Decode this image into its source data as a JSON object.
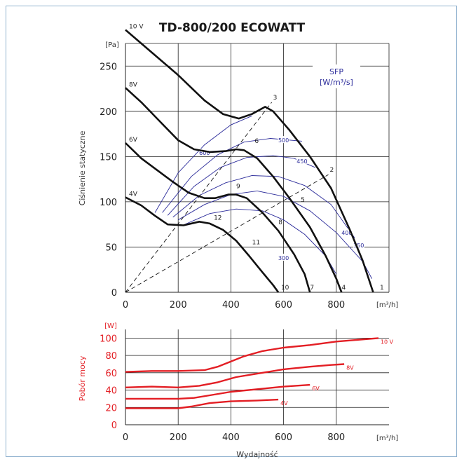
{
  "chart_data": [
    {
      "type": "line",
      "title": "TD-800/200 ECOWATT",
      "ylabel": "Ciśnienie statyczne",
      "y_unit": "[Pa]",
      "x_unit": "[m³/h]",
      "xlim": [
        0,
        1000
      ],
      "ylim": [
        0,
        275
      ],
      "x_ticks": [
        0,
        200,
        400,
        600,
        800
      ],
      "y_ticks": [
        0,
        50,
        100,
        150,
        200,
        250
      ],
      "grid": true,
      "series": [
        {
          "name": "10 V",
          "color": "#111111",
          "points": [
            [
              0,
              290
            ],
            [
              100,
              265
            ],
            [
              200,
              240
            ],
            [
              300,
              212
            ],
            [
              370,
              197
            ],
            [
              430,
              192
            ],
            [
              480,
              197
            ],
            [
              530,
              205
            ],
            [
              560,
              200
            ],
            [
              620,
              180
            ],
            [
              700,
              150
            ],
            [
              780,
              115
            ],
            [
              850,
              70
            ],
            [
              900,
              35
            ],
            [
              940,
              0
            ]
          ]
        },
        {
          "name": "8V",
          "color": "#111111",
          "points": [
            [
              0,
              226
            ],
            [
              60,
              210
            ],
            [
              120,
              192
            ],
            [
              200,
              168
            ],
            [
              260,
              158
            ],
            [
              320,
              155
            ],
            [
              380,
              156
            ],
            [
              420,
              158
            ],
            [
              450,
              157
            ],
            [
              500,
              148
            ],
            [
              560,
              128
            ],
            [
              620,
              105
            ],
            [
              700,
              72
            ],
            [
              760,
              40
            ],
            [
              800,
              15
            ],
            [
              820,
              0
            ]
          ]
        },
        {
          "name": "6V",
          "color": "#111111",
          "points": [
            [
              0,
              165
            ],
            [
              60,
              148
            ],
            [
              120,
              135
            ],
            [
              180,
              122
            ],
            [
              240,
              110
            ],
            [
              300,
              104
            ],
            [
              340,
              104
            ],
            [
              390,
              108
            ],
            [
              420,
              108
            ],
            [
              460,
              104
            ],
            [
              520,
              88
            ],
            [
              580,
              68
            ],
            [
              640,
              42
            ],
            [
              680,
              20
            ],
            [
              700,
              0
            ]
          ]
        },
        {
          "name": "4V",
          "color": "#111111",
          "points": [
            [
              0,
              105
            ],
            [
              60,
              96
            ],
            [
              110,
              85
            ],
            [
              160,
              75
            ],
            [
              220,
              74
            ],
            [
              280,
              78
            ],
            [
              320,
              76
            ],
            [
              370,
              69
            ],
            [
              420,
              57
            ],
            [
              470,
              40
            ],
            [
              520,
              22
            ],
            [
              560,
              8
            ],
            [
              580,
              0
            ]
          ]
        }
      ],
      "sfp_title": "SFP",
      "sfp_unit": "[W/m³/s]",
      "sfp_curves": [
        {
          "label": "600",
          "label_at": [
            300,
            154
          ],
          "points": [
            [
              112,
              88
            ],
            [
              200,
              132
            ],
            [
              300,
              163
            ],
            [
              400,
              185
            ],
            [
              480,
              195
            ]
          ]
        },
        {
          "label": "500",
          "label_at": [
            600,
            168
          ],
          "points": [
            [
              140,
              88
            ],
            [
              250,
              128
            ],
            [
              350,
              152
            ],
            [
              450,
              166
            ],
            [
              550,
              170
            ],
            [
              670,
              167
            ]
          ]
        },
        {
          "label": "450",
          "label_at": [
            670,
            145
          ],
          "points": [
            [
              160,
              85
            ],
            [
              260,
              117
            ],
            [
              360,
              138
            ],
            [
              460,
              149
            ],
            [
              560,
              151
            ],
            [
              640,
              148
            ],
            [
              720,
              138
            ]
          ]
        },
        {
          "label": "400",
          "label_at": [
            840,
            66
          ],
          "points": [
            [
              180,
              83
            ],
            [
              280,
              107
            ],
            [
              380,
              121
            ],
            [
              480,
              129
            ],
            [
              580,
              128
            ],
            [
              680,
              118
            ],
            [
              780,
              97
            ],
            [
              870,
              60
            ]
          ]
        },
        {
          "label": "350",
          "label_at": [
            885,
            52
          ],
          "points": [
            [
              200,
              80
            ],
            [
              300,
              97
            ],
            [
              400,
              108
            ],
            [
              500,
              112
            ],
            [
              600,
              106
            ],
            [
              700,
              90
            ],
            [
              800,
              66
            ],
            [
              900,
              34
            ],
            [
              935,
              15
            ]
          ]
        },
        {
          "label": "300",
          "label_at": [
            600,
            38
          ],
          "points": [
            [
              225,
              75
            ],
            [
              320,
              87
            ],
            [
              420,
              92
            ],
            [
              520,
              90
            ],
            [
              600,
              80
            ],
            [
              680,
              64
            ],
            [
              760,
              40
            ],
            [
              800,
              20
            ]
          ]
        }
      ],
      "operating_points": [
        {
          "label": "1",
          "x": 960,
          "y": 0
        },
        {
          "label": "2",
          "x": 770,
          "y": 130
        },
        {
          "label": "3",
          "x": 555,
          "y": 210
        },
        {
          "label": "4",
          "x": 815,
          "y": 0
        },
        {
          "label": "5",
          "x": 660,
          "y": 97
        },
        {
          "label": "6",
          "x": 485,
          "y": 162
        },
        {
          "label": "7",
          "x": 695,
          "y": 0
        },
        {
          "label": "8",
          "x": 575,
          "y": 72
        },
        {
          "label": "9",
          "x": 415,
          "y": 112
        },
        {
          "label": "10",
          "x": 585,
          "y": 0
        },
        {
          "label": "11",
          "x": 475,
          "y": 50
        },
        {
          "label": "12",
          "x": 330,
          "y": 77
        }
      ],
      "dashed_lines": [
        [
          [
            0,
            0
          ],
          [
            555,
            210
          ]
        ],
        [
          [
            0,
            0
          ],
          [
            770,
            130
          ]
        ]
      ]
    },
    {
      "type": "line",
      "ylabel": "Pobór mocy",
      "y_unit": "[W]",
      "x_unit": "[m³/h]",
      "xlabel": "Wydajność",
      "xlim": [
        0,
        1000
      ],
      "ylim": [
        0,
        110
      ],
      "x_ticks": [
        0,
        200,
        400,
        600,
        800
      ],
      "y_ticks": [
        0,
        20,
        40,
        60,
        80,
        100
      ],
      "grid": true,
      "series": [
        {
          "name": "10 V",
          "color": "#e31e24",
          "points": [
            [
              0,
              61
            ],
            [
              100,
              62
            ],
            [
              200,
              62
            ],
            [
              300,
              63
            ],
            [
              350,
              67
            ],
            [
              400,
              73
            ],
            [
              450,
              79
            ],
            [
              520,
              85
            ],
            [
              600,
              89
            ],
            [
              700,
              92
            ],
            [
              800,
              96
            ],
            [
              960,
              100
            ]
          ]
        },
        {
          "name": "8V",
          "color": "#e31e24",
          "points": [
            [
              0,
              43
            ],
            [
              100,
              44
            ],
            [
              200,
              43
            ],
            [
              280,
              45
            ],
            [
              350,
              49
            ],
            [
              420,
              55
            ],
            [
              500,
              59
            ],
            [
              600,
              64
            ],
            [
              700,
              67
            ],
            [
              780,
              69
            ],
            [
              830,
              70
            ]
          ]
        },
        {
          "name": "6V",
          "color": "#e31e24",
          "points": [
            [
              0,
              30
            ],
            [
              100,
              30
            ],
            [
              200,
              30
            ],
            [
              260,
              31
            ],
            [
              320,
              34
            ],
            [
              400,
              38
            ],
            [
              500,
              41
            ],
            [
              600,
              44
            ],
            [
              700,
              46
            ]
          ]
        },
        {
          "name": "4V",
          "color": "#e31e24",
          "points": [
            [
              0,
              19
            ],
            [
              100,
              19
            ],
            [
              200,
              19
            ],
            [
              250,
              21
            ],
            [
              320,
              25
            ],
            [
              400,
              27
            ],
            [
              500,
              28
            ],
            [
              580,
              29
            ]
          ]
        }
      ]
    }
  ]
}
